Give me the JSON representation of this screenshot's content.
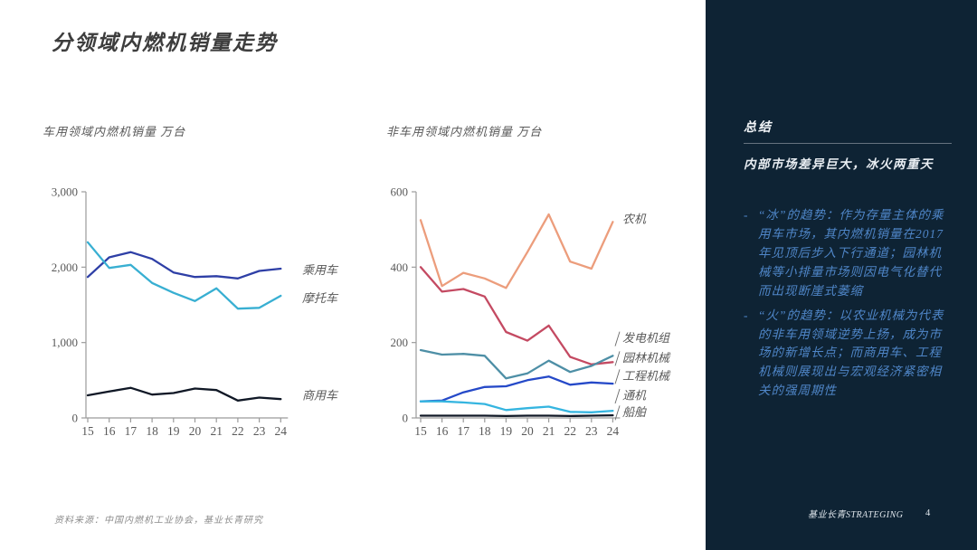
{
  "page": {
    "title": "分领域内燃机销量走势",
    "source": "资料来源：中国内燃机工业协会，基业长青研究",
    "footer": {
      "brand": "基业长青STRATEGING",
      "page_number": "4"
    }
  },
  "colors": {
    "sidebar_background": "#0e2334",
    "sidebar_bullet_text": "#4f86c8",
    "axis_gray": "#9b9b9b",
    "label_gray": "#595959"
  },
  "sidebar": {
    "heading": "总结",
    "subheading": "内部市场差异巨大，冰火两重天",
    "bullets": [
      {
        "dash": "-",
        "text": "“冰”的趋势：作为存量主体的乘用车市场，其内燃机销量在2017年见顶后步入下行通道；园林机械等小排量市场则因电气化替代而出现断崖式萎缩"
      },
      {
        "dash": "-",
        "text": "“火”的趋势：以农业机械为代表的非车用领域逆势上扬，成为市场的新增长点；而商用车、工程机械则展现出与宏观经济紧密相关的强周期性"
      }
    ]
  },
  "chart_data": [
    {
      "type": "line",
      "title": "车用领域内燃机销量 万台",
      "categories": [
        "15",
        "16",
        "17",
        "18",
        "19",
        "20",
        "21",
        "22",
        "23",
        "24"
      ],
      "ylim": [
        0,
        3000
      ],
      "yticks": [
        0,
        1000,
        2000,
        3000
      ],
      "ytick_labels": [
        "0",
        "1,000",
        "2,000",
        "3,000"
      ],
      "grid": false,
      "legend_position": "line-end-labels",
      "series": [
        {
          "name": "乘用车",
          "color": "#2e3fa6",
          "values": [
            1870,
            2130,
            2200,
            2110,
            1930,
            1870,
            1880,
            1850,
            1950,
            1980
          ],
          "label_value": 1960,
          "leader": false
        },
        {
          "name": "摩托车",
          "color": "#38afd2",
          "values": [
            2330,
            1990,
            2030,
            1790,
            1660,
            1550,
            1720,
            1450,
            1460,
            1620
          ],
          "label_value": 1590,
          "leader": false
        },
        {
          "name": "商用车",
          "color": "#101826",
          "values": [
            300,
            350,
            400,
            310,
            330,
            390,
            370,
            230,
            270,
            250
          ],
          "label_value": 300,
          "leader": false
        }
      ]
    },
    {
      "type": "line",
      "title": "非车用领域内燃机销量 万台",
      "categories": [
        "15",
        "16",
        "17",
        "18",
        "19",
        "20",
        "21",
        "22",
        "23",
        "24"
      ],
      "ylim": [
        0,
        600
      ],
      "yticks": [
        0,
        200,
        400,
        600
      ],
      "ytick_labels": [
        "0",
        "200",
        "400",
        "600"
      ],
      "grid": false,
      "legend_position": "line-end-labels",
      "series": [
        {
          "name": "农机",
          "color": "#ec9d7c",
          "values": [
            525,
            350,
            385,
            370,
            345,
            440,
            540,
            415,
            396,
            520
          ],
          "label_value": 528,
          "leader": false
        },
        {
          "name": "园林机械",
          "color": "#c44a62",
          "values": [
            400,
            335,
            342,
            322,
            228,
            205,
            245,
            162,
            142,
            148
          ],
          "label_value": 160,
          "leader": true
        },
        {
          "name": "发电机组",
          "color": "#4e8fa6",
          "values": [
            180,
            168,
            170,
            165,
            105,
            118,
            152,
            122,
            138,
            165
          ],
          "label_value": 212,
          "leader": true
        },
        {
          "name": "工程机械",
          "color": "#2549c8",
          "values": [
            44,
            46,
            68,
            82,
            84,
            100,
            110,
            88,
            94,
            91
          ],
          "label_value": 112,
          "leader": true
        },
        {
          "name": "通机",
          "color": "#35b5e0",
          "values": [
            44,
            44,
            41,
            37,
            21,
            26,
            30,
            16,
            15,
            19
          ],
          "label_value": 60,
          "leader": true
        },
        {
          "name": "船舶",
          "color": "#101826",
          "values": [
            6,
            6,
            6,
            6,
            5,
            6,
            6,
            5,
            6,
            7
          ],
          "label_value": 16,
          "leader": true
        }
      ]
    }
  ]
}
